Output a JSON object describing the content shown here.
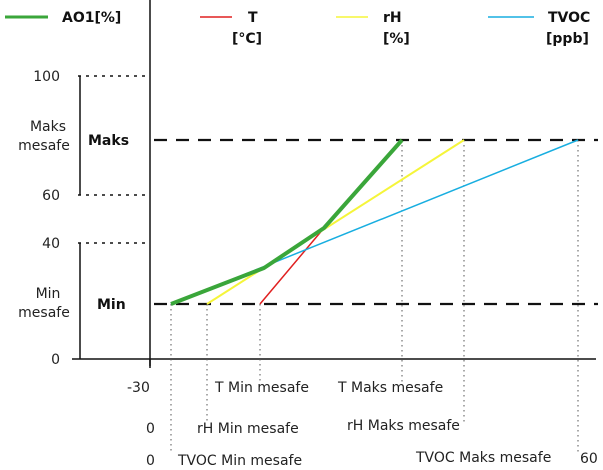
{
  "legend": [
    {
      "label": "AO1[%]",
      "label2": "",
      "color": "#3aa63a"
    },
    {
      "label": "T",
      "label2": "[°C]",
      "color": "#e02020"
    },
    {
      "label": "rH",
      "label2": "[%]",
      "color": "#f5f53a"
    },
    {
      "label": "TVOC",
      "label2": "[ppb]",
      "color": "#18aee0"
    }
  ],
  "y_axis": {
    "ticks": [
      "100",
      "60",
      "40",
      "0"
    ],
    "maks_band_label": [
      "Maks",
      "mesafe"
    ],
    "min_band_label": [
      "Min",
      "mesafe"
    ],
    "maks_line_label": "Maks",
    "min_line_label": "Min"
  },
  "x_axis": {
    "row1": {
      "start": "-30",
      "min_label": "T Min mesafe",
      "max_label": "T Maks mesafe"
    },
    "row2": {
      "start": "0",
      "min_label": "rH Min mesafe",
      "max_label": "rH Maks mesafe"
    },
    "row3": {
      "start": "0",
      "min_label": "TVOC Min mesafe",
      "max_label": "TVOC Maks mesafe",
      "end": "60"
    }
  }
}
